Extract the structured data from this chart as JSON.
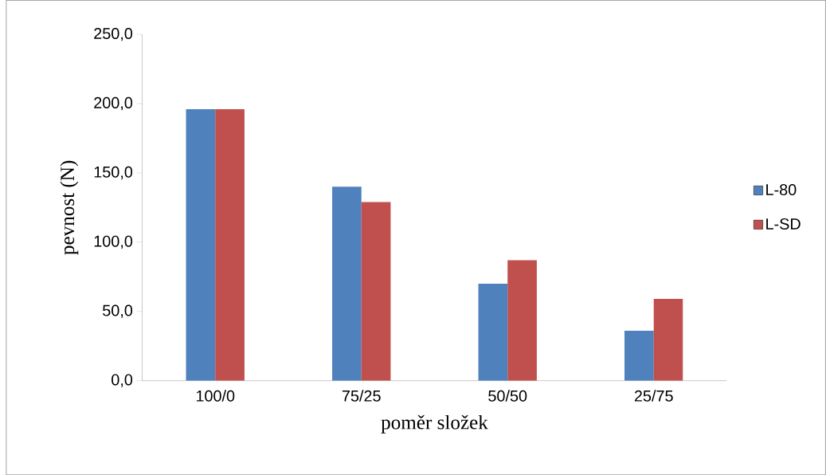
{
  "chart_data": {
    "type": "bar",
    "xlabel": "poměr složek",
    "ylabel": "pevnost (N)",
    "categories": [
      "100/0",
      "75/25",
      "50/50",
      "25/75"
    ],
    "series": [
      {
        "name": "L-80",
        "color": "#4f81bd",
        "values": [
          196,
          140,
          70,
          36
        ]
      },
      {
        "name": "L-SD",
        "color": "#c0504d",
        "values": [
          196,
          129,
          87,
          59
        ]
      }
    ],
    "ylim": [
      0,
      250
    ],
    "yticks": [
      {
        "value": 0,
        "label": "0,0"
      },
      {
        "value": 50,
        "label": "50,0"
      },
      {
        "value": 100,
        "label": "100,0"
      },
      {
        "value": 150,
        "label": "150,0"
      },
      {
        "value": 200,
        "label": "200,0"
      },
      {
        "value": 250,
        "label": "250,0"
      }
    ],
    "grid": false,
    "legend": "right"
  }
}
